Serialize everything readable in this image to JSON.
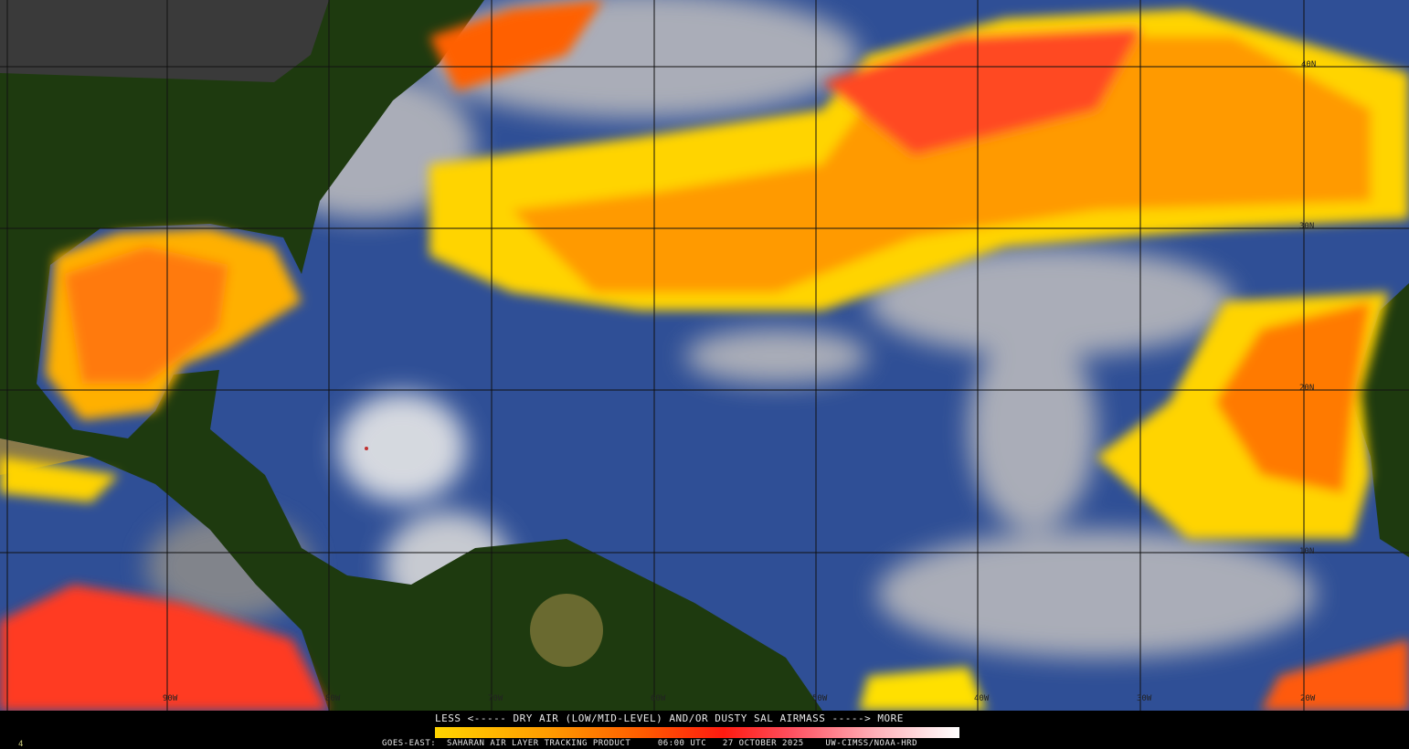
{
  "legend": {
    "title": "LESS <----- DRY AIR (LOW/MID-LEVEL) AND/OR DUSTY SAL AIRMASS -----> MORE",
    "colors": [
      "#ffd400",
      "#ff9a00",
      "#ff5a00",
      "#ff1a10",
      "#ff5060",
      "#ffb0b8",
      "#ffffff"
    ]
  },
  "footer": {
    "satellite": "GOES-EAST:",
    "product": "SAHARAN AIR LAYER TRACKING PRODUCT",
    "time": "06:00 UTC",
    "date": "27 OCTOBER 2025",
    "credit": "UW-CIMSS/NOAA-HRD",
    "frame": "4"
  },
  "grid": {
    "longitudes": [
      "90W",
      "80W",
      "70W",
      "60W",
      "50W",
      "40W",
      "30W",
      "20W"
    ],
    "latitudes": [
      "40N",
      "30N",
      "20N",
      "10N"
    ]
  },
  "colors": {
    "ocean": "#3a5fa8",
    "land": "#1f3a10",
    "cloud": "#c8c8c8",
    "sal_yellow": "#ffe000",
    "sal_orange": "#ff7a00",
    "sal_red": "#ff2a10"
  }
}
